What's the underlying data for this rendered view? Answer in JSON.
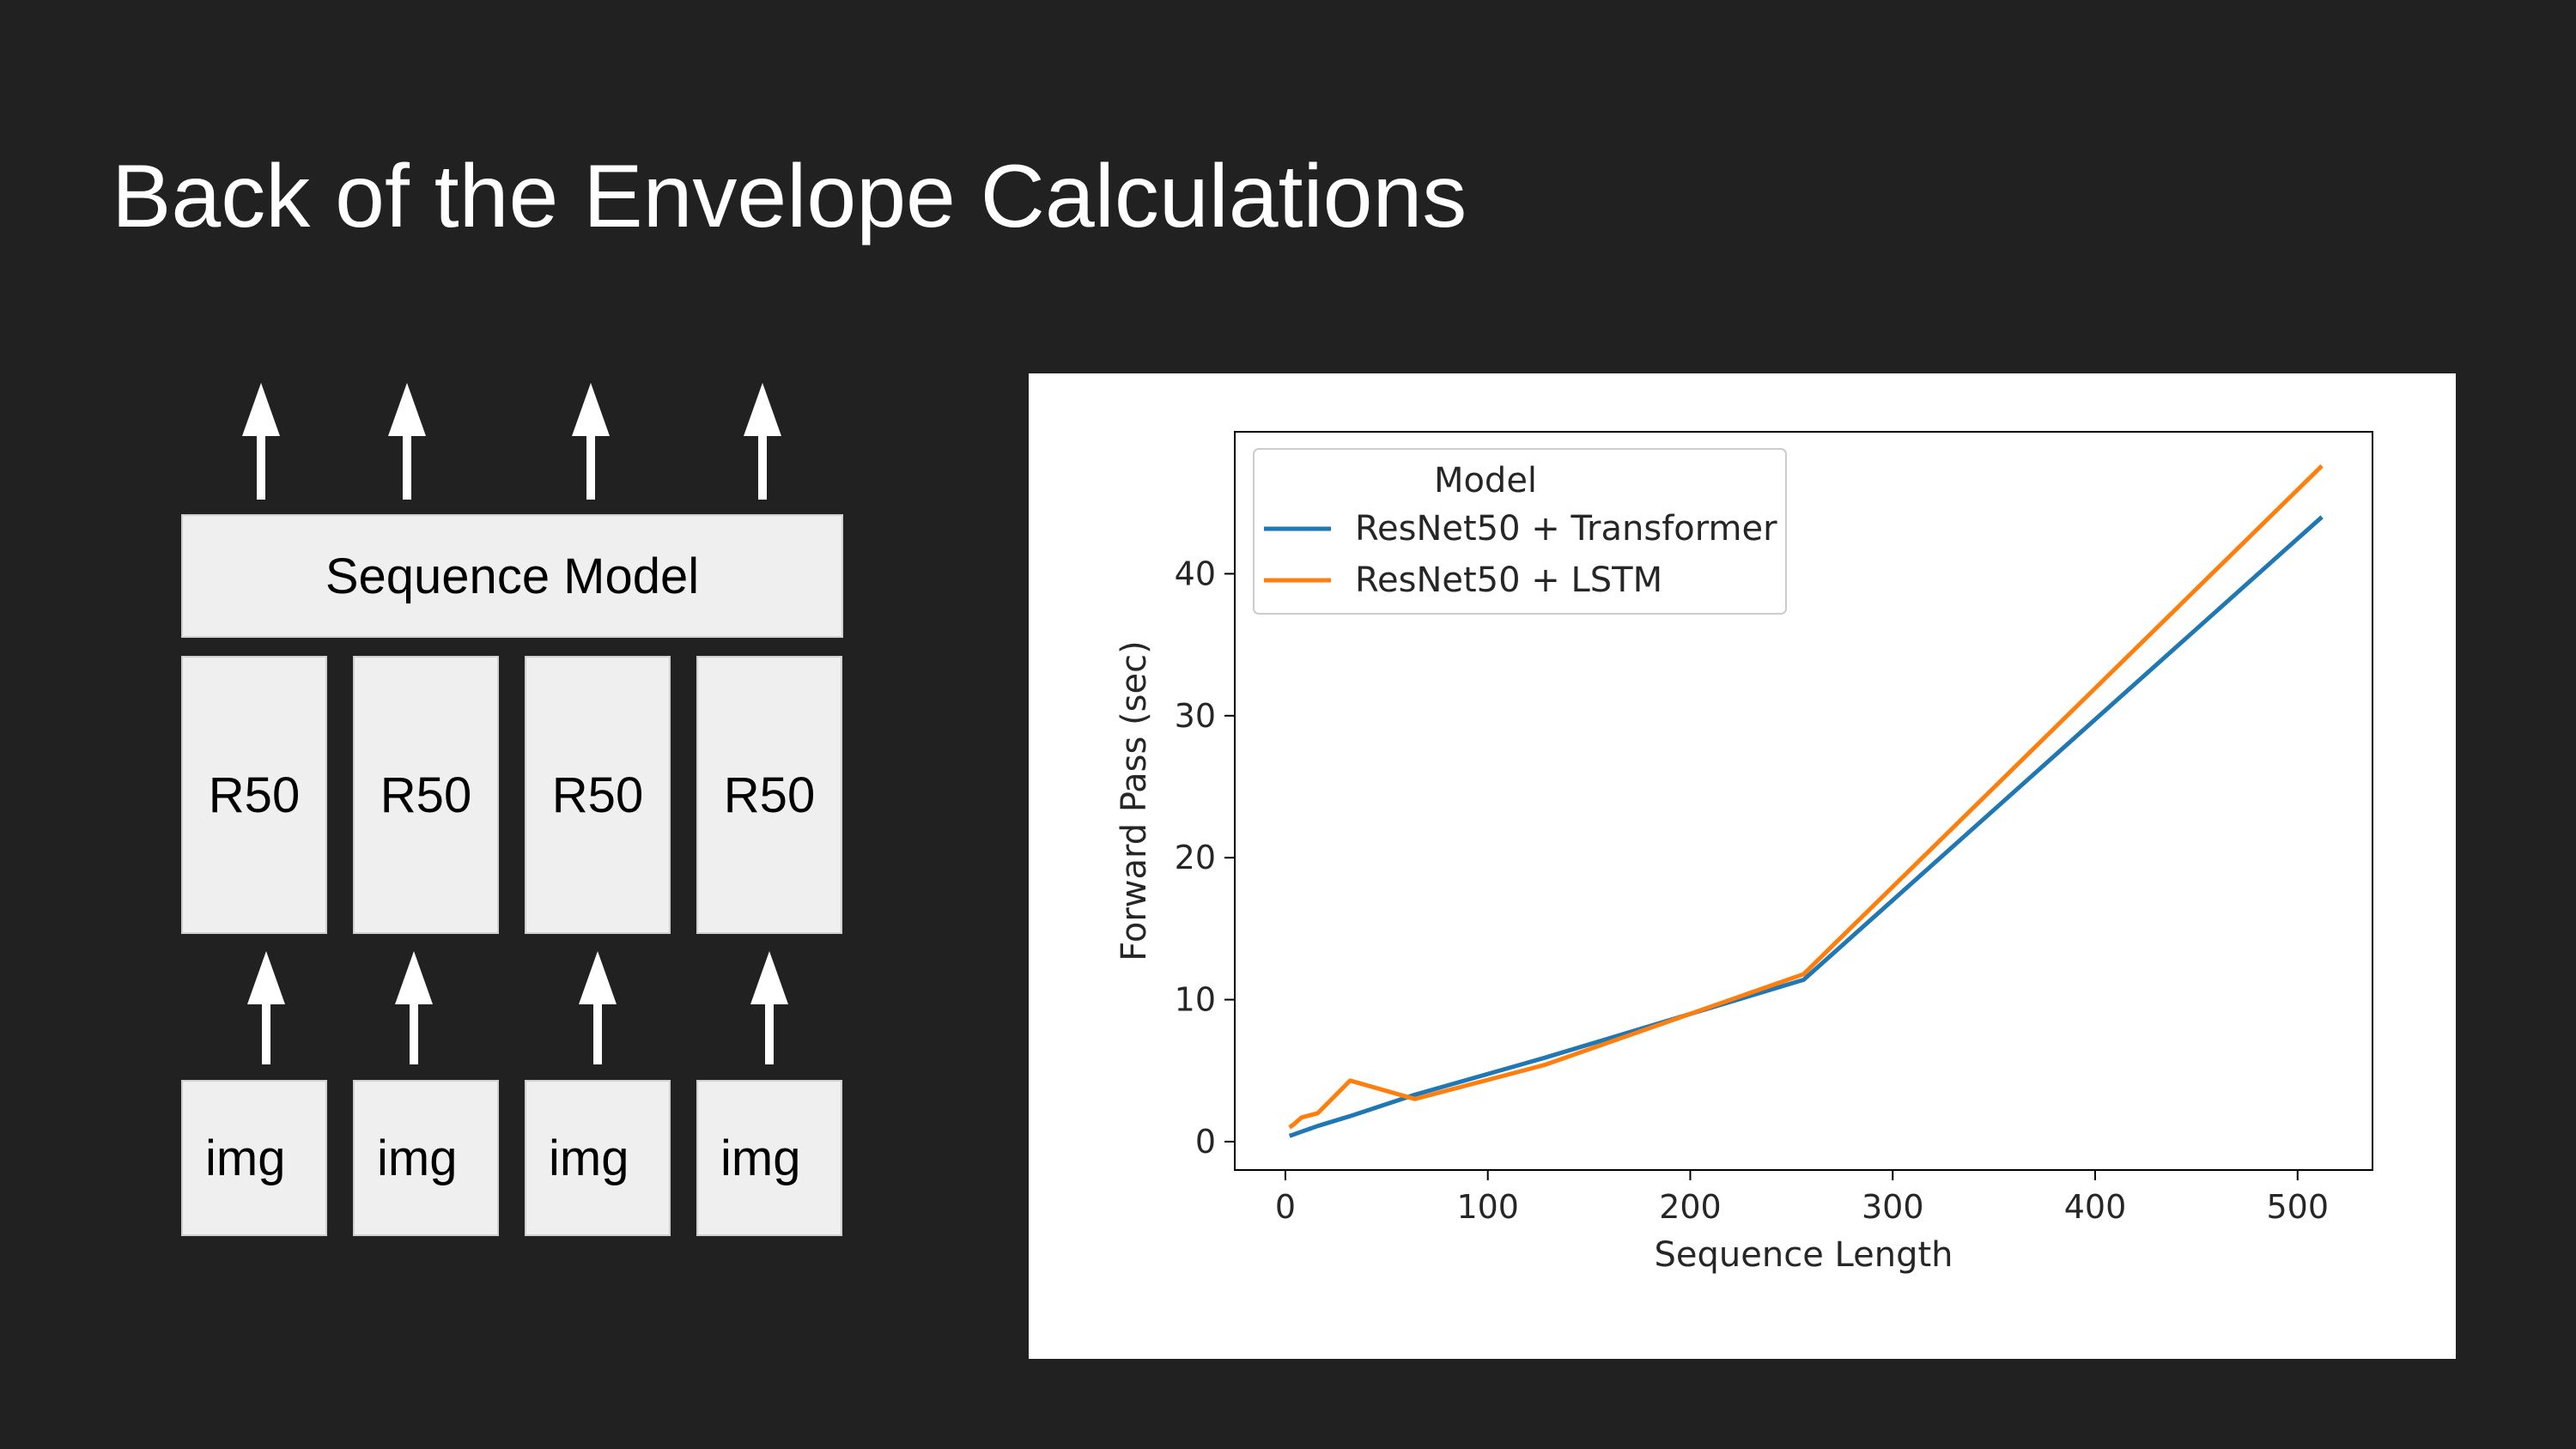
{
  "slide": {
    "title": "Back of the Envelope Calculations"
  },
  "diagram": {
    "sequence_model_label": "Sequence Model",
    "encoders": [
      "R50",
      "R50",
      "R50",
      "R50"
    ],
    "inputs": [
      "img",
      "img",
      "img",
      "img"
    ]
  },
  "colors": {
    "background": "#212121",
    "box_fill": "#efefef",
    "arrow": "#ffffff",
    "series_transformer": "#1f77b4",
    "series_lstm": "#ff7f0e"
  },
  "chart_data": {
    "type": "line",
    "title": "",
    "xlabel": "Sequence Length",
    "ylabel": "Forward Pass (sec)",
    "xlim": [
      -25,
      537
    ],
    "ylim": [
      -2,
      50
    ],
    "xticks": [
      0,
      100,
      200,
      300,
      400,
      500
    ],
    "yticks": [
      0,
      10,
      20,
      30,
      40
    ],
    "grid": false,
    "legend": {
      "title": "Model",
      "placement": "top-left"
    },
    "series": [
      {
        "name": "ResNet50 + Transformer",
        "color": "#1f77b4",
        "points": [
          [
            2,
            0.4
          ],
          [
            4,
            0.5
          ],
          [
            8,
            0.7
          ],
          [
            16,
            1.1
          ],
          [
            32,
            1.8
          ],
          [
            64,
            3.3
          ],
          [
            128,
            5.9
          ],
          [
            256,
            11.4
          ],
          [
            512,
            44.0
          ]
        ]
      },
      {
        "name": "ResNet50 + LSTM",
        "color": "#ff7f0e",
        "points": [
          [
            2,
            1.0
          ],
          [
            4,
            1.2
          ],
          [
            8,
            1.7
          ],
          [
            16,
            2.0
          ],
          [
            32,
            4.3
          ],
          [
            64,
            3.0
          ],
          [
            128,
            5.4
          ],
          [
            256,
            11.8
          ],
          [
            512,
            47.6
          ]
        ]
      }
    ]
  }
}
